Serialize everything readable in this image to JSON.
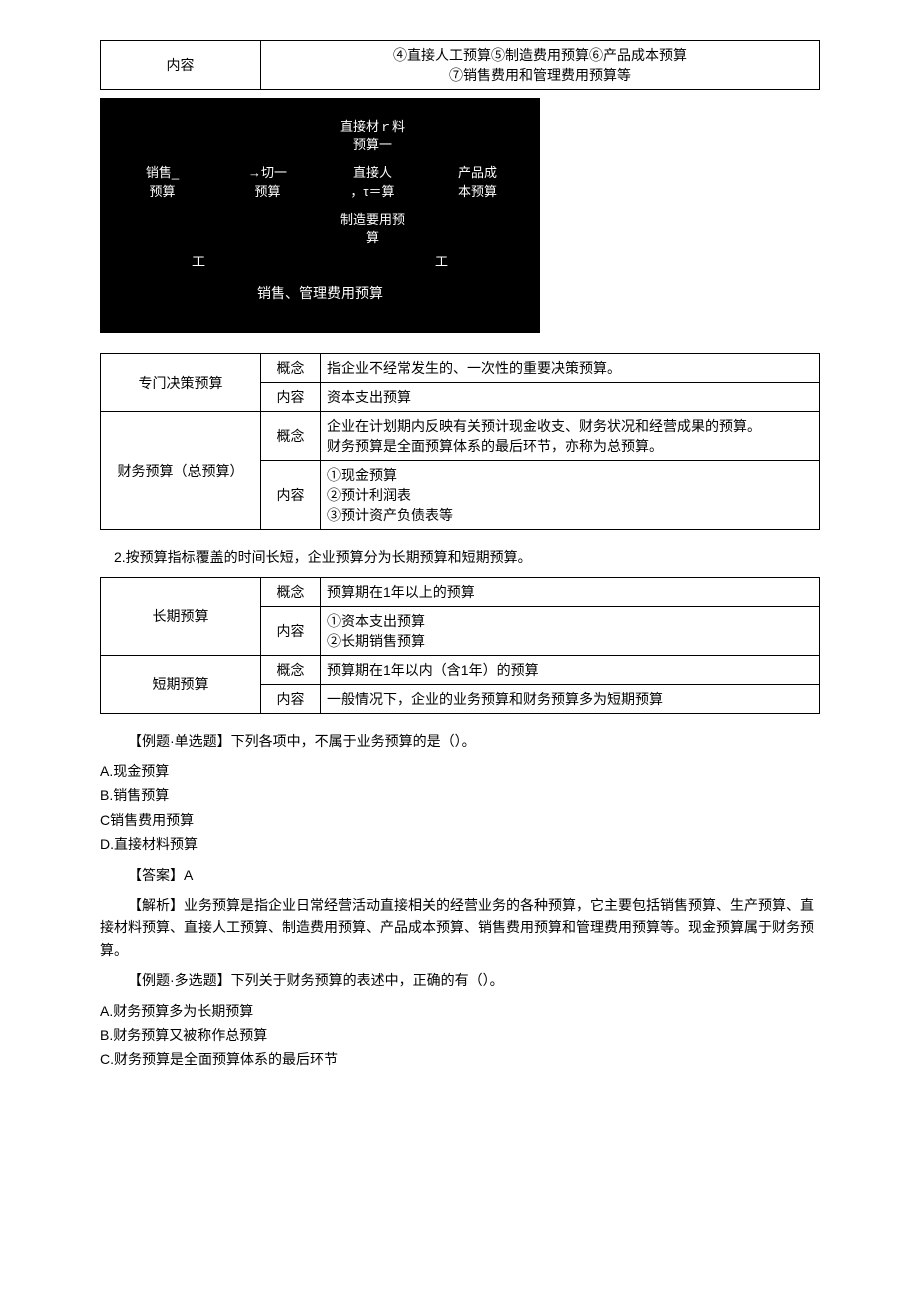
{
  "table1": {
    "col1": "内容",
    "col2_line1": "④直接人工预算⑤制造费用预算⑥产品成本预算",
    "col2_line2": "⑦销售费用和管理费用预算等"
  },
  "diagram": {
    "r1c3": "直接材ｒ料",
    "r1c3b": "预算一",
    "r2c1a": "销售_",
    "r2c1b": "预算",
    "r2c2a": "→切一",
    "r2c2b": "预算",
    "r2c3a": "直接人",
    "r2c3b": "，τ＝算",
    "r2c4a": "产品成",
    "r2c4b": "本预算",
    "r3c3a": "制造要用预",
    "r3c3b": "算",
    "tick_left": "工",
    "tick_right": "工",
    "footer": "销售、管理费用预算"
  },
  "table2": {
    "rows": [
      {
        "a": "专门决策预算",
        "a_rowspan": 2,
        "b": "概念",
        "c": "指企业不经常发生的、一次性的重要决策预算。"
      },
      {
        "b": "内容",
        "c": "资本支出预算"
      },
      {
        "a": "财务预算（总预算）",
        "a_rowspan": 2,
        "b": "概念",
        "c": "企业在计划期内反映有关预计现金收支、财务状况和经营成果的预算。\n财务预算是全面预算体系的最后环节，亦称为总预算。"
      },
      {
        "b": "内容",
        "c": "①现金预算\n②预计利润表\n③预计资产负债表等"
      }
    ]
  },
  "section2_title": "2.按预算指标覆盖的时间长短，企业预算分为长期预算和短期预算。",
  "table3": {
    "rows": [
      {
        "a": "长期预算",
        "a_rowspan": 2,
        "b": "概念",
        "c": "预算期在1年以上的预算"
      },
      {
        "b": "内容",
        "c": "①资本支出预算\n②长期销售预算"
      },
      {
        "a": "短期预算",
        "a_rowspan": 2,
        "b": "概念",
        "c": "预算期在1年以内（含1年）的预算"
      },
      {
        "b": "内容",
        "c": "一般情况下，企业的业务预算和财务预算多为短期预算"
      }
    ]
  },
  "q1": {
    "stem": "【例题·单选题】下列各项中，不属于业务预算的是（）。",
    "opts": [
      "A.现金预算",
      "B.销售预算",
      "C销售费用预算",
      "D.直接材料预算"
    ],
    "answer": "【答案】A",
    "analysis": "【解析】业务预算是指企业日常经营活动直接相关的经营业务的各种预算，它主要包括销售预算、生产预算、直接材料预算、直接人工预算、制造费用预算、产品成本预算、销售费用预算和管理费用预算等。现金预算属于财务预算。"
  },
  "q2": {
    "stem": "【例题·多选题】下列关于财务预算的表述中，正确的有（）。",
    "opts": [
      "A.财务预算多为长期预算",
      "B.财务预算又被称作总预算",
      "C.财务预算是全面预算体系的最后环节"
    ]
  }
}
